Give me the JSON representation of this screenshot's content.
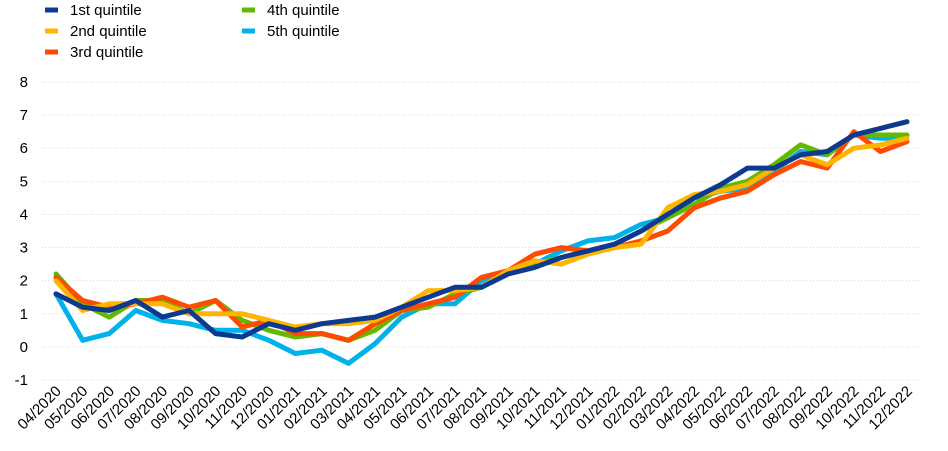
{
  "chart_data": {
    "type": "line",
    "title": "",
    "xlabel": "",
    "ylabel": "",
    "ylim": [
      -1,
      8
    ],
    "yticks": [
      -1,
      0,
      1,
      2,
      3,
      4,
      5,
      6,
      7,
      8
    ],
    "grid": true,
    "legend_position": "top-left",
    "categories": [
      "04/2020",
      "05/2020",
      "06/2020",
      "07/2020",
      "08/2020",
      "09/2020",
      "10/2020",
      "11/2020",
      "12/2020",
      "01/2021",
      "02/2021",
      "03/2021",
      "04/2021",
      "05/2021",
      "06/2021",
      "07/2021",
      "08/2021",
      "09/2021",
      "10/2021",
      "11/2021",
      "12/2021",
      "01/2022",
      "02/2022",
      "03/2022",
      "04/2022",
      "05/2022",
      "06/2022",
      "07/2022",
      "08/2022",
      "09/2022",
      "10/2022",
      "11/2022",
      "12/2022"
    ],
    "series": [
      {
        "name": "1st quintile",
        "color": "#0d3a8e",
        "values": [
          1.6,
          1.2,
          1.1,
          1.4,
          0.9,
          1.1,
          0.4,
          0.3,
          0.7,
          0.5,
          0.7,
          0.8,
          0.9,
          1.2,
          1.5,
          1.8,
          1.8,
          2.2,
          2.4,
          2.7,
          2.9,
          3.1,
          3.5,
          4.0,
          4.5,
          4.9,
          5.4,
          5.4,
          5.8,
          5.9,
          6.4,
          6.6,
          6.8
        ]
      },
      {
        "name": "2nd quintile",
        "color": "#ffb400",
        "values": [
          2.0,
          1.1,
          1.3,
          1.3,
          1.3,
          1.0,
          1.0,
          1.0,
          0.8,
          0.6,
          0.7,
          0.7,
          0.8,
          1.2,
          1.7,
          1.7,
          1.8,
          2.3,
          2.6,
          2.5,
          2.8,
          3.0,
          3.1,
          4.2,
          4.6,
          4.7,
          4.9,
          5.4,
          5.8,
          5.5,
          6.0,
          6.1,
          6.3
        ]
      },
      {
        "name": "3rd quintile",
        "color": "#ff4b00",
        "values": [
          2.1,
          1.4,
          1.2,
          1.3,
          1.5,
          1.2,
          1.4,
          0.6,
          0.8,
          0.4,
          0.4,
          0.2,
          0.7,
          1.1,
          1.3,
          1.5,
          2.1,
          2.3,
          2.8,
          3.0,
          2.9,
          3.0,
          3.2,
          3.5,
          4.2,
          4.5,
          4.7,
          5.2,
          5.6,
          5.4,
          6.5,
          5.9,
          6.2
        ]
      },
      {
        "name": "4th quintile",
        "color": "#65b800",
        "values": [
          2.2,
          1.3,
          0.9,
          1.4,
          1.4,
          1.0,
          1.4,
          0.8,
          0.5,
          0.3,
          0.4,
          0.2,
          0.5,
          1.1,
          1.2,
          1.6,
          1.8,
          2.3,
          2.5,
          2.7,
          2.9,
          3.1,
          3.5,
          3.9,
          4.3,
          4.8,
          5.0,
          5.5,
          6.1,
          5.8,
          6.4,
          6.4,
          6.4
        ]
      },
      {
        "name": "5th quintile",
        "color": "#00b1ea",
        "values": [
          1.6,
          0.2,
          0.4,
          1.1,
          0.8,
          0.7,
          0.5,
          0.5,
          0.2,
          -0.2,
          -0.1,
          -0.5,
          0.1,
          0.9,
          1.3,
          1.3,
          2.0,
          2.2,
          2.5,
          2.9,
          3.2,
          3.3,
          3.7,
          3.9,
          4.5,
          4.7,
          4.8,
          5.3,
          5.9,
          5.8,
          6.4,
          6.3,
          6.3
        ]
      }
    ]
  }
}
